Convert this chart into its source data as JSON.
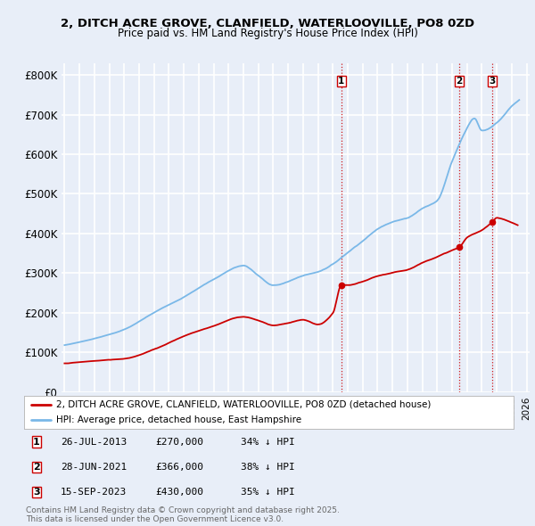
{
  "title_line1": "2, DITCH ACRE GROVE, CLANFIELD, WATERLOOVILLE, PO8 0ZD",
  "title_line2": "Price paid vs. HM Land Registry's House Price Index (HPI)",
  "bg_color": "#e8eef8",
  "plot_bg_color": "#e8eef8",
  "hpi_color": "#7ab8e8",
  "price_color": "#cc0000",
  "grid_color": "#ffffff",
  "ylim": [
    0,
    830000
  ],
  "yticks": [
    0,
    100000,
    200000,
    300000,
    400000,
    500000,
    600000,
    700000,
    800000
  ],
  "ytick_labels": [
    "£0",
    "£100K",
    "£200K",
    "£300K",
    "£400K",
    "£500K",
    "£600K",
    "£700K",
    "£800K"
  ],
  "sale_dates": [
    2013.57,
    2021.49,
    2023.71
  ],
  "sale_prices": [
    270000,
    366000,
    430000
  ],
  "sale_labels": [
    "1",
    "2",
    "3"
  ],
  "legend_entries": [
    "2, DITCH ACRE GROVE, CLANFIELD, WATERLOOVILLE, PO8 0ZD (detached house)",
    "HPI: Average price, detached house, East Hampshire"
  ],
  "table_entries": [
    {
      "label": "1",
      "date": "26-JUL-2013",
      "price": "£270,000",
      "pct": "34% ↓ HPI"
    },
    {
      "label": "2",
      "date": "28-JUN-2021",
      "price": "£366,000",
      "pct": "38% ↓ HPI"
    },
    {
      "label": "3",
      "date": "15-SEP-2023",
      "price": "£430,000",
      "pct": "35% ↓ HPI"
    }
  ],
  "footnote": "Contains HM Land Registry data © Crown copyright and database right 2025.\nThis data is licensed under the Open Government Licence v3.0.",
  "xmin": 1994.8,
  "xmax": 2026.2
}
